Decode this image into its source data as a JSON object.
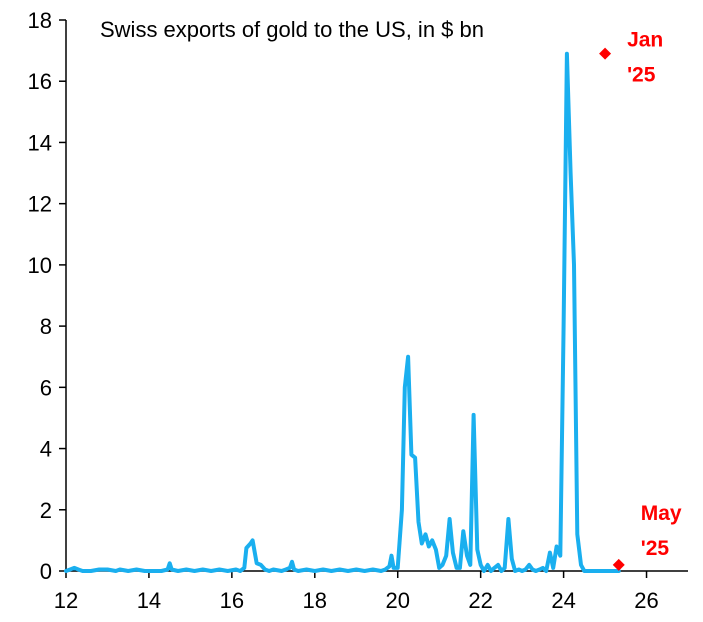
{
  "chart_data": {
    "type": "line",
    "title": "Swiss exports of gold to the US, in $ bn",
    "xlabel": "",
    "ylabel": "",
    "xlim": [
      12,
      27
    ],
    "ylim": [
      0,
      18
    ],
    "x_ticks": [
      12,
      14,
      16,
      18,
      20,
      22,
      24,
      26
    ],
    "x_tick_labels": [
      "12",
      "14",
      "16",
      "18",
      "20",
      "22",
      "24",
      "26"
    ],
    "y_ticks": [
      0,
      2,
      4,
      6,
      8,
      10,
      12,
      14,
      16,
      18
    ],
    "y_tick_labels": [
      "0",
      "2",
      "4",
      "6",
      "8",
      "10",
      "12",
      "14",
      "16",
      "18"
    ],
    "grid": false,
    "line_color": "#1AAFEF",
    "marker_color": "#FF0000",
    "series": [
      {
        "x": [
          12.0,
          12.1,
          12.2,
          12.3,
          12.4,
          12.6,
          12.8,
          13.0,
          13.2,
          13.3,
          13.5,
          13.7,
          13.9,
          14.1,
          14.3,
          14.45,
          14.5,
          14.55,
          14.7,
          14.9,
          15.1,
          15.3,
          15.5,
          15.7,
          15.9,
          16.1,
          16.2,
          16.3,
          16.35,
          16.45,
          16.5,
          16.6,
          16.7,
          16.8,
          16.9,
          17.0,
          17.2,
          17.3,
          17.4,
          17.45,
          17.5,
          17.6,
          17.8,
          18.0,
          18.2,
          18.4,
          18.6,
          18.8,
          19.0,
          19.2,
          19.4,
          19.6,
          19.7,
          19.8,
          19.85,
          19.9,
          20.0,
          20.1,
          20.17,
          20.25,
          20.33,
          20.42,
          20.5,
          20.58,
          20.67,
          20.75,
          20.83,
          20.92,
          21.0,
          21.08,
          21.17,
          21.25,
          21.33,
          21.42,
          21.5,
          21.58,
          21.67,
          21.75,
          21.83,
          21.92,
          22.0,
          22.08,
          22.17,
          22.25,
          22.33,
          22.42,
          22.5,
          22.58,
          22.67,
          22.75,
          22.83,
          22.92,
          23.0,
          23.08,
          23.17,
          23.25,
          23.33,
          23.42,
          23.5,
          23.58,
          23.67,
          23.75,
          23.83,
          23.92,
          24.0,
          24.08,
          24.17,
          24.25,
          24.33,
          24.42,
          24.5,
          24.58,
          24.67,
          24.75,
          24.83,
          24.92,
          25.0,
          25.08,
          25.17,
          25.25,
          25.33
        ],
        "y": [
          0.0,
          0.05,
          0.1,
          0.05,
          0.0,
          0.0,
          0.05,
          0.05,
          0.0,
          0.05,
          0.0,
          0.05,
          0.0,
          0.0,
          0.0,
          0.05,
          0.25,
          0.05,
          0.0,
          0.05,
          0.0,
          0.05,
          0.0,
          0.05,
          0.0,
          0.05,
          0.0,
          0.1,
          0.75,
          0.9,
          1.0,
          0.25,
          0.2,
          0.05,
          0.0,
          0.05,
          0.0,
          0.05,
          0.1,
          0.3,
          0.05,
          0.0,
          0.05,
          0.0,
          0.05,
          0.0,
          0.05,
          0.0,
          0.05,
          0.0,
          0.05,
          0.0,
          0.05,
          0.15,
          0.5,
          0.1,
          0.1,
          2.0,
          6.0,
          7.0,
          3.8,
          3.7,
          1.6,
          0.9,
          1.2,
          0.8,
          1.0,
          0.7,
          0.1,
          0.2,
          0.5,
          1.7,
          0.6,
          0.1,
          0.1,
          1.3,
          0.5,
          0.2,
          5.1,
          0.7,
          0.2,
          0.0,
          0.2,
          0.0,
          0.1,
          0.2,
          0.0,
          0.1,
          1.7,
          0.4,
          0.0,
          0.05,
          0.0,
          0.05,
          0.2,
          0.05,
          0.0,
          0.05,
          0.1,
          0.0,
          0.6,
          0.1,
          0.8,
          0.5,
          8.0,
          16.9,
          13.0,
          10.0,
          1.2,
          0.2,
          0.0,
          0.0,
          0.0,
          0.0,
          0.0,
          0.0,
          0.0,
          0.0,
          0.0,
          0.0,
          0.0
        ]
      }
    ],
    "annotations": [
      {
        "x": 25.0,
        "y": 16.9,
        "line1": "Jan",
        "line2": "'25",
        "color": "#FF0000"
      },
      {
        "x": 25.33,
        "y": 0.2,
        "line1": "May",
        "line2": "'25",
        "color": "#FF0000"
      }
    ]
  }
}
